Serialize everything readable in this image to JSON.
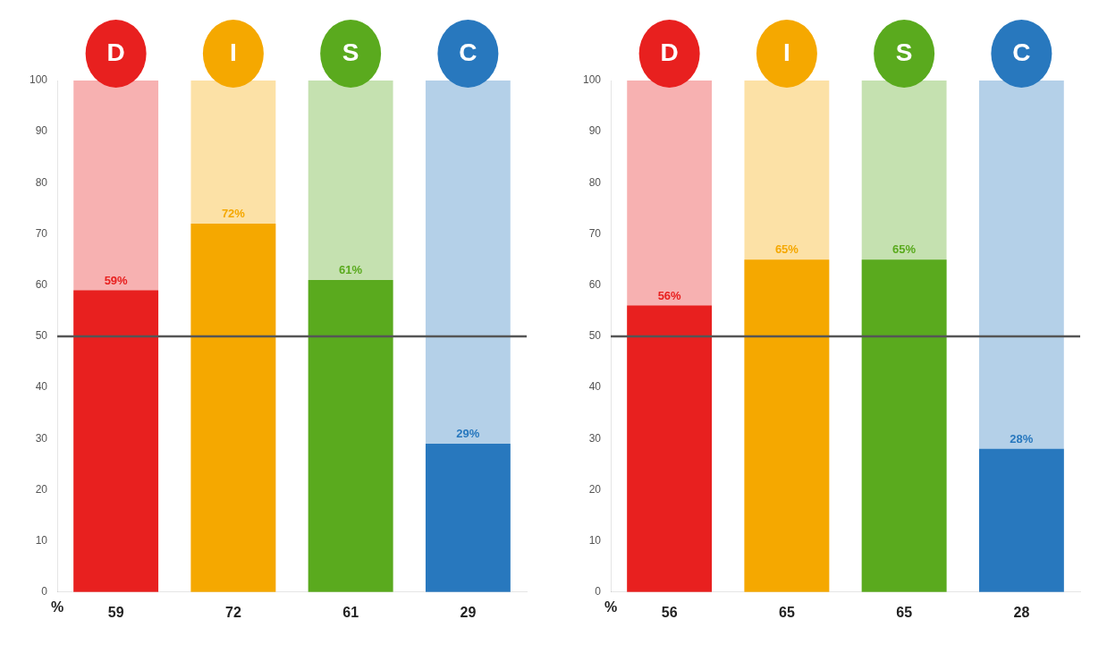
{
  "chart_data": [
    {
      "type": "bar",
      "categories": [
        "59",
        "72",
        "61",
        "29"
      ],
      "values": [
        59,
        72,
        61,
        29
      ],
      "value_labels": [
        "59%",
        "72%",
        "61%",
        "29%"
      ],
      "data_labels": true,
      "colors": [
        "#E8201F",
        "#F5A800",
        "#5AAA1E",
        "#2878BE"
      ],
      "annotations": [
        "D",
        "I",
        "S",
        "C"
      ],
      "ylabel": "%",
      "ylim": [
        0,
        100
      ],
      "yticks": [
        0,
        10,
        20,
        30,
        40,
        50,
        60,
        70,
        80,
        90,
        100
      ],
      "midline": 50,
      "grid": false
    },
    {
      "type": "bar",
      "categories": [
        "56",
        "65",
        "65",
        "28"
      ],
      "values": [
        56,
        65,
        65,
        28
      ],
      "value_labels": [
        "56%",
        "65%",
        "65%",
        "28%"
      ],
      "data_labels": true,
      "colors": [
        "#E8201F",
        "#F5A800",
        "#5AAA1E",
        "#2878BE"
      ],
      "annotations": [
        "D",
        "I",
        "S",
        "C"
      ],
      "ylabel": "%",
      "ylim": [
        0,
        100
      ],
      "yticks": [
        0,
        10,
        20,
        30,
        40,
        50,
        60,
        70,
        80,
        90,
        100
      ],
      "midline": 50,
      "grid": false
    }
  ]
}
